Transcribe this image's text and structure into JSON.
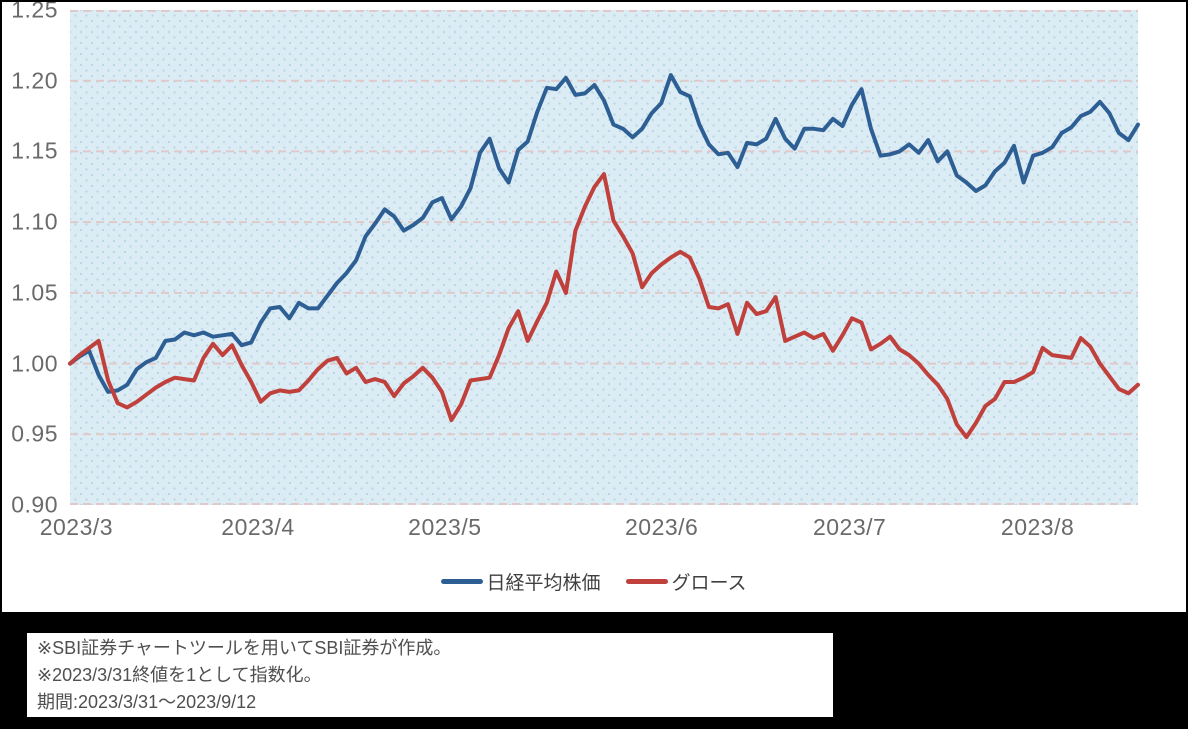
{
  "chart": {
    "y_axis": {
      "tick_labels": [
        "1.25",
        "1.20",
        "1.15",
        "1.10",
        "1.05",
        "1.00",
        "0.95",
        "0.90"
      ],
      "tick_values": [
        1.25,
        1.2,
        1.15,
        1.1,
        1.05,
        1.0,
        0.95,
        0.9
      ]
    },
    "x_axis": {
      "labels": [
        "2023/3",
        "2023/4",
        "2023/5",
        "2023/6",
        "2023/7",
        "2023/8"
      ],
      "positions": [
        0.006,
        0.176,
        0.351,
        0.554,
        0.73,
        0.906
      ]
    },
    "legend": [
      {
        "label": "日経平均株価",
        "color": "#2e5f94"
      },
      {
        "label": "グロース",
        "color": "#c0403c"
      }
    ],
    "colors": {
      "plot_background": "#dcecf4",
      "plot_dots": "#bad7e7",
      "gridline": "#dfc9c9",
      "axis_text": "#6a6a6a",
      "nikkei_line": "#2e5f94",
      "growth_line": "#c0403c",
      "footer_band": "#000000"
    }
  },
  "chart_data": {
    "type": "line",
    "title": "",
    "xlabel": "",
    "ylabel": "",
    "ylim": [
      0.9,
      1.25
    ],
    "grid": "horizontal-dashed",
    "legend_position": "bottom-center",
    "note": "Both series indexed to 1.0 at 2023/3/31 close; business-day axis 2023/3/31 to 2023/9/12",
    "x_dates": [
      "3/31",
      "4/3",
      "4/4",
      "4/5",
      "4/6",
      "4/7",
      "4/10",
      "4/11",
      "4/12",
      "4/13",
      "4/14",
      "4/17",
      "4/18",
      "4/19",
      "4/20",
      "4/21",
      "4/24",
      "4/25",
      "4/26",
      "4/27",
      "4/28",
      "5/1",
      "5/2",
      "5/8",
      "5/9",
      "5/10",
      "5/11",
      "5/12",
      "5/15",
      "5/16",
      "5/17",
      "5/18",
      "5/19",
      "5/22",
      "5/23",
      "5/24",
      "5/25",
      "5/26",
      "5/29",
      "5/30",
      "5/31",
      "6/1",
      "6/2",
      "6/5",
      "6/6",
      "6/7",
      "6/8",
      "6/9",
      "6/12",
      "6/13",
      "6/14",
      "6/15",
      "6/16",
      "6/19",
      "6/20",
      "6/21",
      "6/22",
      "6/23",
      "6/26",
      "6/27",
      "6/28",
      "6/29",
      "6/30",
      "7/3",
      "7/4",
      "7/5",
      "7/6",
      "7/7",
      "7/10",
      "7/11",
      "7/12",
      "7/13",
      "7/14",
      "7/18",
      "7/19",
      "7/20",
      "7/21",
      "7/24",
      "7/25",
      "7/26",
      "7/27",
      "7/28",
      "7/31",
      "8/1",
      "8/2",
      "8/3",
      "8/4",
      "8/7",
      "8/8",
      "8/9",
      "8/10",
      "8/14",
      "8/15",
      "8/16",
      "8/17",
      "8/18",
      "8/21",
      "8/22",
      "8/23",
      "8/24",
      "8/25",
      "8/28",
      "8/29",
      "8/30",
      "8/31",
      "9/1",
      "9/4",
      "9/5",
      "9/6",
      "9/7",
      "9/8",
      "9/11",
      "9/12"
    ],
    "series": [
      {
        "name": "日経平均株価",
        "color": "#2e5f94",
        "values": [
          1.0,
          1.005,
          1.009,
          0.992,
          0.98,
          0.981,
          0.985,
          0.996,
          1.001,
          1.004,
          1.016,
          1.017,
          1.022,
          1.02,
          1.022,
          1.019,
          1.02,
          1.021,
          1.013,
          1.015,
          1.029,
          1.039,
          1.04,
          1.032,
          1.043,
          1.039,
          1.039,
          1.048,
          1.057,
          1.064,
          1.073,
          1.09,
          1.099,
          1.109,
          1.104,
          1.094,
          1.098,
          1.103,
          1.114,
          1.117,
          1.102,
          1.111,
          1.124,
          1.149,
          1.159,
          1.138,
          1.128,
          1.151,
          1.157,
          1.178,
          1.195,
          1.194,
          1.202,
          1.19,
          1.191,
          1.197,
          1.186,
          1.169,
          1.166,
          1.16,
          1.166,
          1.177,
          1.184,
          1.204,
          1.192,
          1.189,
          1.169,
          1.155,
          1.148,
          1.149,
          1.139,
          1.156,
          1.155,
          1.159,
          1.173,
          1.159,
          1.152,
          1.166,
          1.166,
          1.165,
          1.173,
          1.168,
          1.183,
          1.194,
          1.166,
          1.147,
          1.148,
          1.15,
          1.155,
          1.149,
          1.158,
          1.143,
          1.15,
          1.133,
          1.128,
          1.122,
          1.126,
          1.136,
          1.142,
          1.154,
          1.128,
          1.147,
          1.149,
          1.153,
          1.163,
          1.167,
          1.175,
          1.178,
          1.185,
          1.177,
          1.163,
          1.158,
          1.169
        ]
      },
      {
        "name": "グロース",
        "color": "#c0403c",
        "values": [
          1.0,
          1.006,
          1.011,
          1.016,
          0.988,
          0.972,
          0.969,
          0.973,
          0.978,
          0.983,
          0.987,
          0.99,
          0.989,
          0.988,
          1.004,
          1.014,
          1.006,
          1.013,
          0.999,
          0.987,
          0.973,
          0.979,
          0.981,
          0.98,
          0.981,
          0.988,
          0.996,
          1.002,
          1.004,
          0.993,
          0.997,
          0.987,
          0.989,
          0.987,
          0.977,
          0.986,
          0.991,
          0.997,
          0.99,
          0.98,
          0.96,
          0.971,
          0.988,
          0.989,
          0.99,
          1.006,
          1.025,
          1.037,
          1.016,
          1.03,
          1.043,
          1.065,
          1.05,
          1.094,
          1.111,
          1.125,
          1.134,
          1.101,
          1.09,
          1.078,
          1.054,
          1.064,
          1.07,
          1.075,
          1.079,
          1.075,
          1.06,
          1.04,
          1.039,
          1.042,
          1.021,
          1.043,
          1.035,
          1.037,
          1.047,
          1.016,
          1.019,
          1.022,
          1.018,
          1.021,
          1.009,
          1.02,
          1.032,
          1.029,
          1.01,
          1.014,
          1.019,
          1.01,
          1.006,
          1.0,
          0.992,
          0.985,
          0.975,
          0.957,
          0.948,
          0.958,
          0.97,
          0.975,
          0.987,
          0.987,
          0.99,
          0.994,
          1.011,
          1.006,
          1.005,
          1.004,
          1.018,
          1.012,
          1.0,
          0.991,
          0.982,
          0.979,
          0.985
        ]
      }
    ]
  },
  "footnotes": {
    "lines": [
      "※SBI証券チャートツールを用いてSBI証券が作成。",
      "※2023/3/31終値を1として指数化。",
      "期間:2023/3/31〜2023/9/12"
    ]
  }
}
